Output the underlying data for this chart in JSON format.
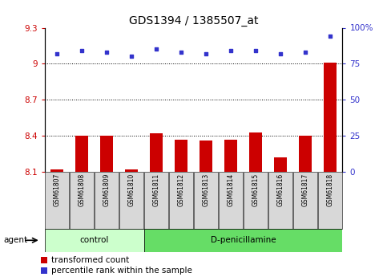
{
  "title": "GDS1394 / 1385507_at",
  "samples": [
    "GSM61807",
    "GSM61808",
    "GSM61809",
    "GSM61810",
    "GSM61811",
    "GSM61812",
    "GSM61813",
    "GSM61814",
    "GSM61815",
    "GSM61816",
    "GSM61817",
    "GSM61818"
  ],
  "bar_values": [
    8.12,
    8.4,
    8.4,
    8.12,
    8.42,
    8.37,
    8.36,
    8.37,
    8.43,
    8.22,
    8.4,
    9.01
  ],
  "dot_values": [
    82,
    84,
    83,
    80,
    85,
    83,
    82,
    84,
    84,
    82,
    83,
    94
  ],
  "ylim_left": [
    8.1,
    9.3
  ],
  "ylim_right": [
    0,
    100
  ],
  "yticks_left": [
    8.1,
    8.4,
    8.7,
    9.0,
    9.3
  ],
  "yticks_right": [
    0,
    25,
    50,
    75,
    100
  ],
  "ytick_labels_left": [
    "8.1",
    "8.4",
    "8.7",
    "9",
    "9.3"
  ],
  "ytick_labels_right": [
    "0",
    "25",
    "50",
    "75",
    "100%"
  ],
  "hlines": [
    9.0,
    8.7,
    8.4
  ],
  "n_control": 4,
  "n_total": 12,
  "control_label": "control",
  "treatment_label": "D-penicillamine",
  "agent_label": "agent",
  "bar_color": "#cc0000",
  "dot_color": "#3333cc",
  "bar_width": 0.5,
  "legend_bar_label": "transformed count",
  "legend_dot_label": "percentile rank within the sample",
  "control_bg": "#ccffcc",
  "treatment_bg": "#66dd66",
  "tick_label_bg": "#d8d8d8",
  "title_fontsize": 10,
  "axis_fontsize": 7.5,
  "legend_fontsize": 7.5
}
